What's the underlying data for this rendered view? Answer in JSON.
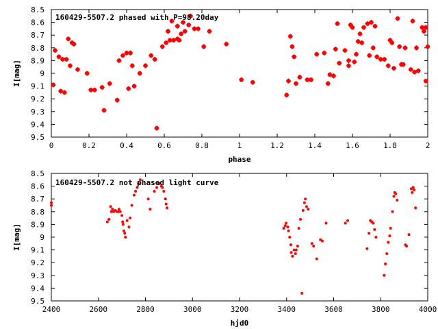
{
  "chart_data": [
    {
      "type": "scatter",
      "title": "160429-5507.2 phased with P=98.20day",
      "xlabel": "phase",
      "ylabel": "I[mag]",
      "xlim": [
        0,
        2
      ],
      "ylim": [
        8.5,
        9.5
      ],
      "y_inverted": true,
      "grid": false,
      "marker_color": "#ff0000",
      "xticks": [
        "0",
        "0.2",
        "0.4",
        "0.6",
        "0.8",
        "1",
        "1.2",
        "1.4",
        "1.6",
        "1.8",
        "2"
      ],
      "yticks": [
        "8.5",
        "8.6",
        "8.7",
        "8.8",
        "8.9",
        "9",
        "9.1",
        "9.2",
        "9.3",
        "9.4",
        "9.5"
      ],
      "points": [
        [
          0.01,
          9.09
        ],
        [
          0.02,
          8.82
        ],
        [
          0.04,
          8.87
        ],
        [
          0.05,
          9.14
        ],
        [
          0.06,
          8.89
        ],
        [
          0.07,
          9.15
        ],
        [
          0.08,
          8.89
        ],
        [
          0.09,
          8.73
        ],
        [
          0.1,
          8.94
        ],
        [
          0.11,
          8.76
        ],
        [
          0.12,
          8.77
        ],
        [
          0.14,
          8.97
        ],
        [
          0.19,
          9.0
        ],
        [
          0.21,
          9.13
        ],
        [
          0.23,
          9.13
        ],
        [
          0.27,
          9.11
        ],
        [
          0.28,
          9.29
        ],
        [
          0.31,
          9.08
        ],
        [
          0.35,
          9.21
        ],
        [
          0.36,
          8.9
        ],
        [
          0.38,
          8.86
        ],
        [
          0.4,
          8.84
        ],
        [
          0.41,
          9.12
        ],
        [
          0.42,
          8.84
        ],
        [
          0.43,
          8.94
        ],
        [
          0.44,
          9.1
        ],
        [
          0.47,
          9.0
        ],
        [
          0.5,
          8.94
        ],
        [
          0.53,
          8.86
        ],
        [
          0.55,
          8.89
        ],
        [
          0.56,
          9.43
        ],
        [
          0.59,
          8.79
        ],
        [
          0.61,
          8.76
        ],
        [
          0.62,
          8.67
        ],
        [
          0.63,
          8.74
        ],
        [
          0.64,
          8.59
        ],
        [
          0.65,
          8.74
        ],
        [
          0.67,
          8.73
        ],
        [
          0.67,
          8.63
        ],
        [
          0.68,
          8.74
        ],
        [
          0.69,
          8.69
        ],
        [
          0.7,
          8.6
        ],
        [
          0.71,
          8.67
        ],
        [
          0.73,
          8.62
        ],
        [
          0.74,
          8.55
        ],
        [
          0.76,
          8.65
        ],
        [
          0.78,
          8.65
        ],
        [
          0.81,
          8.79
        ],
        [
          0.84,
          8.67
        ],
        [
          0.93,
          8.77
        ],
        [
          1.01,
          9.05
        ],
        [
          1.07,
          9.07
        ],
        [
          1.25,
          9.17
        ],
        [
          1.26,
          9.06
        ],
        [
          1.27,
          8.71
        ],
        [
          1.28,
          8.79
        ],
        [
          1.29,
          8.87
        ],
        [
          1.3,
          9.08
        ],
        [
          1.32,
          9.03
        ],
        [
          1.36,
          9.05
        ],
        [
          1.38,
          9.05
        ],
        [
          1.41,
          8.85
        ],
        [
          1.45,
          8.84
        ],
        [
          1.47,
          9.08
        ],
        [
          1.48,
          9.01
        ],
        [
          1.5,
          9.02
        ],
        [
          1.51,
          8.81
        ],
        [
          1.52,
          8.61
        ],
        [
          1.53,
          8.92
        ],
        [
          1.56,
          8.82
        ],
        [
          1.58,
          8.9
        ],
        [
          1.58,
          8.94
        ],
        [
          1.59,
          8.62
        ],
        [
          1.6,
          8.64
        ],
        [
          1.61,
          8.91
        ],
        [
          1.62,
          8.85
        ],
        [
          1.63,
          8.75
        ],
        [
          1.64,
          8.69
        ],
        [
          1.65,
          8.76
        ],
        [
          1.66,
          8.64
        ],
        [
          1.68,
          8.61
        ],
        [
          1.69,
          8.86
        ],
        [
          1.7,
          8.6
        ],
        [
          1.71,
          8.8
        ],
        [
          1.72,
          8.63
        ],
        [
          1.73,
          8.87
        ],
        [
          1.75,
          8.89
        ],
        [
          1.77,
          8.89
        ],
        [
          1.79,
          8.94
        ],
        [
          1.8,
          8.74
        ],
        [
          1.81,
          8.76
        ],
        [
          1.82,
          8.96
        ],
        [
          1.84,
          8.57
        ],
        [
          1.85,
          8.79
        ],
        [
          1.86,
          8.93
        ],
        [
          1.87,
          8.93
        ],
        [
          1.88,
          8.8
        ],
        [
          1.91,
          8.97
        ],
        [
          1.92,
          8.59
        ],
        [
          1.93,
          8.99
        ],
        [
          1.94,
          8.8
        ],
        [
          1.95,
          8.98
        ],
        [
          1.97,
          8.64
        ],
        [
          1.98,
          8.67
        ],
        [
          1.99,
          9.06
        ],
        [
          1.99,
          8.64
        ],
        [
          2.0,
          8.79
        ]
      ]
    },
    {
      "type": "scatter",
      "title": "160429-5507.2 not phased light curve",
      "xlabel": "hjd0",
      "ylabel": "I[mag]",
      "xlim": [
        2400,
        4000
      ],
      "ylim": [
        8.5,
        9.5
      ],
      "y_inverted": true,
      "grid": false,
      "marker_color": "#ff0000",
      "xticks": [
        "2400",
        "2600",
        "2800",
        "3000",
        "3200",
        "3400",
        "3600",
        "3800",
        "4000"
      ],
      "yticks": [
        "8.5",
        "8.6",
        "8.7",
        "8.8",
        "8.9",
        "9",
        "9.1",
        "9.2",
        "9.3",
        "9.4",
        "9.5"
      ],
      "points": [
        [
          2400,
          8.73
        ],
        [
          2400,
          8.75
        ],
        [
          2638,
          8.88
        ],
        [
          2645,
          8.86
        ],
        [
          2652,
          8.76
        ],
        [
          2655,
          8.8
        ],
        [
          2660,
          8.78
        ],
        [
          2665,
          8.8
        ],
        [
          2672,
          8.79
        ],
        [
          2678,
          8.8
        ],
        [
          2684,
          8.8
        ],
        [
          2688,
          8.78
        ],
        [
          2693,
          8.8
        ],
        [
          2700,
          8.83
        ],
        [
          2703,
          8.88
        ],
        [
          2705,
          8.9
        ],
        [
          2708,
          8.95
        ],
        [
          2712,
          8.97
        ],
        [
          2715,
          9.0
        ],
        [
          2722,
          8.87
        ],
        [
          2730,
          8.92
        ],
        [
          2735,
          8.85
        ],
        [
          2742,
          8.75
        ],
        [
          2752,
          8.67
        ],
        [
          2758,
          8.64
        ],
        [
          2765,
          8.61
        ],
        [
          2770,
          8.58
        ],
        [
          2778,
          8.55
        ],
        [
          2812,
          8.7
        ],
        [
          2820,
          8.78
        ],
        [
          2838,
          8.64
        ],
        [
          2848,
          8.61
        ],
        [
          2858,
          8.58
        ],
        [
          2868,
          8.6
        ],
        [
          2872,
          8.61
        ],
        [
          2878,
          8.64
        ],
        [
          2885,
          8.7
        ],
        [
          2888,
          8.74
        ],
        [
          2892,
          8.77
        ],
        [
          3388,
          8.93
        ],
        [
          3394,
          8.91
        ],
        [
          3398,
          8.89
        ],
        [
          3405,
          8.92
        ],
        [
          3408,
          8.95
        ],
        [
          3413,
          9.0
        ],
        [
          3418,
          9.06
        ],
        [
          3420,
          9.12
        ],
        [
          3425,
          9.15
        ],
        [
          3432,
          9.1
        ],
        [
          3438,
          9.13
        ],
        [
          3441,
          9.1
        ],
        [
          3447,
          9.07
        ],
        [
          3452,
          8.93
        ],
        [
          3459,
          8.86
        ],
        [
          3465,
          9.44
        ],
        [
          3470,
          8.79
        ],
        [
          3476,
          8.73
        ],
        [
          3480,
          8.7
        ],
        [
          3485,
          8.76
        ],
        [
          3492,
          8.78
        ],
        [
          3508,
          9.05
        ],
        [
          3515,
          9.07
        ],
        [
          3528,
          9.17
        ],
        [
          3544,
          9.02
        ],
        [
          3552,
          9.03
        ],
        [
          3568,
          8.89
        ],
        [
          3650,
          8.89
        ],
        [
          3660,
          8.87
        ],
        [
          3742,
          9.09
        ],
        [
          3750,
          8.97
        ],
        [
          3756,
          8.87
        ],
        [
          3762,
          8.88
        ],
        [
          3768,
          8.89
        ],
        [
          3774,
          8.94
        ],
        [
          3780,
          9.0
        ],
        [
          3815,
          9.3
        ],
        [
          3820,
          9.21
        ],
        [
          3826,
          9.13
        ],
        [
          3832,
          9.04
        ],
        [
          3838,
          8.99
        ],
        [
          3842,
          8.93
        ],
        [
          3850,
          8.8
        ],
        [
          3856,
          8.68
        ],
        [
          3860,
          8.65
        ],
        [
          3864,
          8.66
        ],
        [
          3870,
          8.71
        ],
        [
          3905,
          9.06
        ],
        [
          3910,
          9.07
        ],
        [
          3920,
          8.98
        ],
        [
          3930,
          8.62
        ],
        [
          3934,
          8.65
        ],
        [
          3938,
          8.61
        ],
        [
          3942,
          8.63
        ],
        [
          3948,
          8.77
        ]
      ]
    }
  ]
}
